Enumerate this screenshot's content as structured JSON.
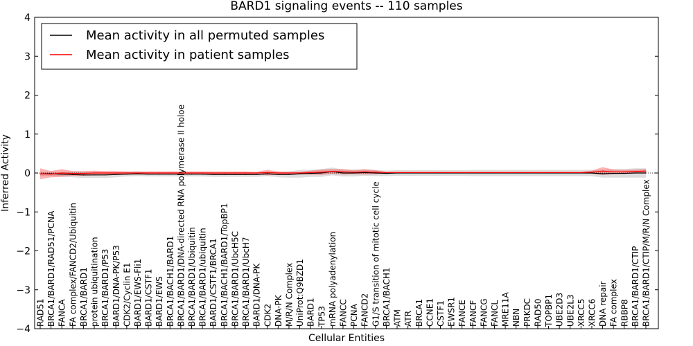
{
  "chart_data": {
    "type": "line",
    "title": "BARD1 signaling events -- 110 samples",
    "xlabel": "Cellular Entities",
    "ylabel": "Inferred Activity",
    "ylim": [
      -4,
      4
    ],
    "yticks": [
      "−4",
      "−3",
      "−2",
      "−1",
      "0",
      "1",
      "2",
      "3",
      "4"
    ],
    "legend": {
      "placement": "top-left",
      "entries": [
        {
          "label": "Mean activity in all permuted samples",
          "color": "#000000"
        },
        {
          "label": "Mean activity in patient samples",
          "color": "#ff0000"
        }
      ]
    },
    "categories": [
      "RAD51",
      "BRCA1/BARD1/RAD51/PCNA",
      "FANCA",
      "FA complex/FANCD2/Ubiquitin",
      "BRCA1/BARD1",
      "protein ubiquitination",
      "BRCA1/BARD1/P53",
      "BARD1/DNA-PK/P53",
      "CDK2/Cyclin E1",
      "BARD1/EWS-Fli1",
      "BARD1/CSTF1",
      "BARD1/EWS",
      "BRCA1/BACH1/BARD1",
      "BRCA1/BARD1/DNA-directed RNA polymerase II holoe",
      "BRCA1/BARD1/Ubiquitin",
      "BRCA1/BARD1/ubiquitin",
      "BARD1/CSTF1/BRCA1",
      "BRCA1/BACH1/BARD1/TopBP1",
      "BRCA1/BARD1/UbcH5C",
      "BRCA1/BARD1/UbcH7",
      "BARD1/DNA-PK",
      "CDK2",
      "DNA-PK",
      "M/R/N Complex",
      "UniProt:Q9BZD1",
      "BARD1",
      "TP53",
      "mRNA polyadenylation",
      "FANCC",
      "PCNA",
      "FANCD2",
      "G1/S transition of mitotic cell cycle",
      "BRCA1/BACH1",
      "ATM",
      "ATR",
      "BRCA1",
      "CCNE1",
      "CSTF1",
      "EWSR1",
      "FANCE",
      "FANCF",
      "FANCG",
      "FANCL",
      "MRE11A",
      "NBN",
      "PRKDC",
      "RAD50",
      "TOPBP1",
      "UBE2D3",
      "UBE2L3",
      "XRCC5",
      "XRCC6",
      "DNA repair",
      "FA complex",
      "RBBP8",
      "BRCA1/BARD1/CTIP",
      "BRCA1/BARD1/CTIP/M/R/N Complex"
    ],
    "series": [
      {
        "name": "Mean activity in all permuted samples",
        "color": "#000000",
        "values": [
          -0.02,
          -0.02,
          -0.03,
          -0.04,
          -0.05,
          -0.05,
          -0.05,
          -0.04,
          -0.03,
          -0.02,
          -0.03,
          -0.03,
          -0.03,
          -0.03,
          -0.03,
          -0.03,
          -0.04,
          -0.04,
          -0.04,
          -0.04,
          -0.04,
          -0.02,
          -0.04,
          -0.04,
          -0.02,
          -0.01,
          0.0,
          0.04,
          0.0,
          0.0,
          0.01,
          0.0,
          -0.01,
          0.0,
          0.0,
          0.0,
          0.0,
          0.0,
          0.0,
          0.0,
          0.0,
          0.0,
          0.0,
          0.0,
          0.0,
          0.0,
          0.0,
          0.0,
          0.0,
          0.0,
          0.0,
          0.0,
          -0.02,
          -0.01,
          -0.01,
          0.0,
          0.0
        ],
        "band": [
          0.06,
          0.05,
          0.06,
          0.07,
          0.08,
          0.08,
          0.08,
          0.07,
          0.06,
          0.06,
          0.06,
          0.06,
          0.06,
          0.06,
          0.06,
          0.06,
          0.06,
          0.06,
          0.06,
          0.06,
          0.06,
          0.06,
          0.07,
          0.08,
          0.1,
          0.09,
          0.1,
          0.1,
          0.09,
          0.09,
          0.08,
          0.08,
          0.07,
          0.07,
          0.07,
          0.07,
          0.07,
          0.07,
          0.07,
          0.07,
          0.08,
          0.08,
          0.08,
          0.08,
          0.08,
          0.08,
          0.08,
          0.08,
          0.08,
          0.08,
          0.08,
          0.08,
          0.1,
          0.11,
          0.11,
          0.12,
          0.12
        ]
      },
      {
        "name": "Mean activity in patient samples",
        "color": "#ff0000",
        "values": [
          -0.02,
          -0.03,
          0.0,
          -0.01,
          -0.01,
          0.0,
          0.0,
          0.0,
          0.0,
          0.0,
          0.0,
          0.0,
          0.0,
          0.0,
          0.0,
          0.0,
          0.0,
          0.0,
          0.0,
          0.0,
          0.0,
          0.01,
          0.0,
          0.0,
          0.0,
          0.01,
          0.02,
          0.04,
          0.03,
          0.02,
          0.03,
          0.02,
          0.01,
          0.01,
          0.01,
          0.01,
          0.01,
          0.01,
          0.01,
          0.01,
          0.01,
          0.01,
          0.01,
          0.01,
          0.01,
          0.01,
          0.01,
          0.01,
          0.01,
          0.01,
          0.01,
          0.02,
          0.05,
          0.03,
          0.03,
          0.04,
          0.05
        ],
        "band": [
          0.14,
          0.08,
          0.1,
          0.06,
          0.06,
          0.06,
          0.05,
          0.05,
          0.04,
          0.04,
          0.04,
          0.04,
          0.04,
          0.04,
          0.04,
          0.04,
          0.04,
          0.04,
          0.04,
          0.04,
          0.03,
          0.07,
          0.04,
          0.03,
          0.03,
          0.05,
          0.07,
          0.06,
          0.07,
          0.05,
          0.07,
          0.05,
          0.02,
          0.02,
          0.02,
          0.02,
          0.02,
          0.02,
          0.02,
          0.02,
          0.02,
          0.02,
          0.02,
          0.02,
          0.02,
          0.02,
          0.02,
          0.02,
          0.02,
          0.02,
          0.02,
          0.04,
          0.1,
          0.06,
          0.05,
          0.05,
          0.05
        ]
      }
    ]
  }
}
